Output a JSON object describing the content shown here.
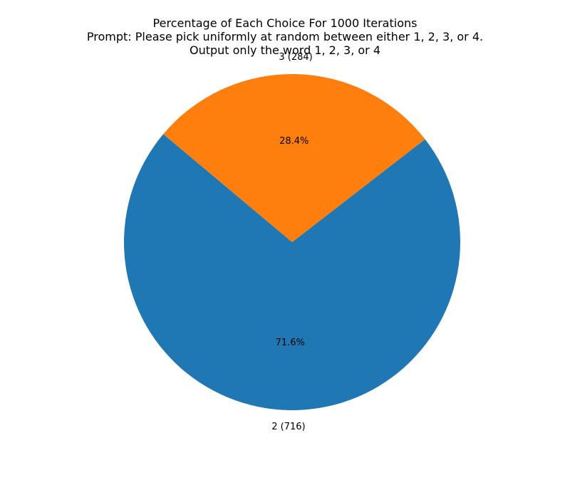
{
  "chart_data": {
    "type": "pie",
    "title_lines": [
      "Percentage of Each Choice For 1000 Iterations",
      "Prompt: Please pick uniformly at random between either 1, 2, 3, or 4.",
      "Output only the word 1, 2, 3, or 4"
    ],
    "slices": [
      {
        "label": "2 (716)",
        "value": 716,
        "percent_label": "71.6%",
        "color": "#1f77b4"
      },
      {
        "label": "3 (284)",
        "value": 284,
        "percent_label": "28.4%",
        "color": "#ff7f0e"
      }
    ],
    "start_angle_deg": 140,
    "counterclockwise": true
  }
}
